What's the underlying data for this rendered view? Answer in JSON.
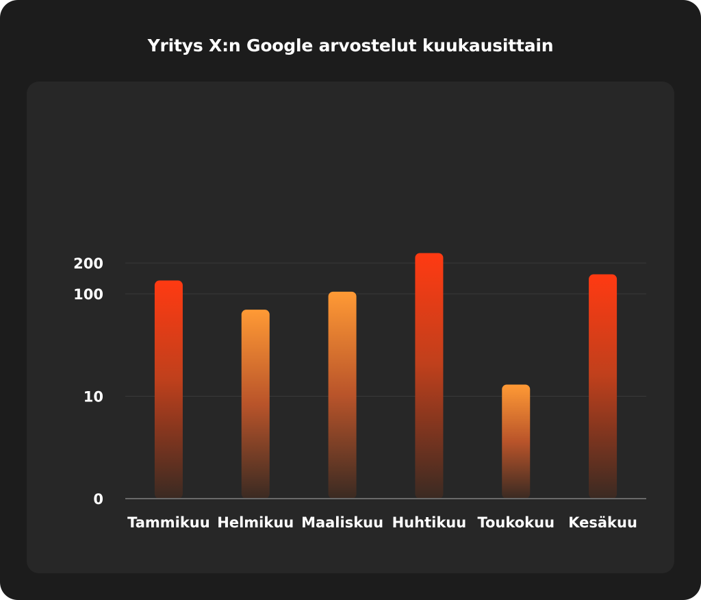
{
  "chart_data": {
    "type": "bar",
    "title": "Yritys X:n Google arvostelut kuukausittain",
    "xlabel": "",
    "ylabel": "",
    "scale": "log",
    "grid": true,
    "y_ticks": [
      {
        "value": 1,
        "label": "0"
      },
      {
        "value": 10,
        "label": "10"
      },
      {
        "value": 100,
        "label": "100"
      },
      {
        "value": 200,
        "label": "200"
      }
    ],
    "categories": [
      "Tammikuu",
      "Helmikuu",
      "Maaliskuu",
      "Huhtikuu",
      "Toukokuu",
      "Kesäkuu"
    ],
    "values": [
      135,
      70,
      105,
      250,
      13,
      155
    ],
    "bar_styles": [
      "red",
      "orange",
      "orange",
      "red",
      "orange",
      "red"
    ]
  },
  "colors": {
    "background": "#1c1c1c",
    "panel": "#272727",
    "red_top": "#ff3a12",
    "orange_top": "#ff9a35",
    "bar_bottom": "#3a2a22"
  }
}
